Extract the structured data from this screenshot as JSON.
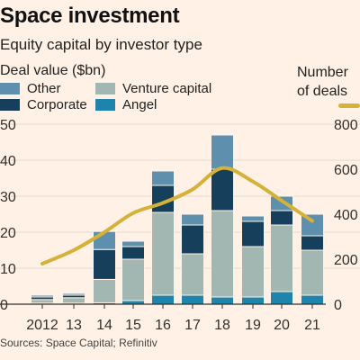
{
  "header": {
    "title": "Space investment",
    "subtitle": "Equity capital by investor type",
    "ylabel_left": "Deal value ($bn)",
    "ylabel_right_line1": "Number",
    "ylabel_right_line2": "of deals"
  },
  "legend": [
    {
      "label": "Other",
      "color": "#5e8fad"
    },
    {
      "label": "Venture capital",
      "color": "#a2b6b2"
    },
    {
      "label": "Corporate",
      "color": "#163f5b"
    },
    {
      "label": "Angel",
      "color": "#1f84ab"
    }
  ],
  "line_legend_color": "#d4b23a",
  "source": "Sources: Space Capital; Refinitiv",
  "chart_data": {
    "type": "bar",
    "stacked": true,
    "categories": [
      "2012",
      "13",
      "14",
      "15",
      "16",
      "17",
      "18",
      "19",
      "20",
      "21"
    ],
    "series": [
      {
        "name": "Angel",
        "color": "#1f84ab",
        "values": [
          0.3,
          0.3,
          0.4,
          1.0,
          2.5,
          2.5,
          2.0,
          2.0,
          3.5,
          2.5
        ]
      },
      {
        "name": "Venture capital",
        "color": "#a2b6b2",
        "values": [
          1.0,
          1.5,
          6.5,
          11.5,
          23.0,
          11.5,
          24.0,
          14.0,
          18.5,
          12.5
        ]
      },
      {
        "name": "Corporate",
        "color": "#163f5b",
        "values": [
          0.7,
          0.7,
          8.3,
          3.5,
          7.5,
          8.0,
          11.5,
          7.0,
          4.0,
          4.0
        ]
      },
      {
        "name": "Other",
        "color": "#5e8fad",
        "values": [
          0.5,
          0.5,
          5.0,
          1.5,
          4.0,
          3.0,
          9.5,
          1.5,
          4.0,
          6.0
        ]
      }
    ],
    "line_series": {
      "name": "Number of deals",
      "color": "#d4b23a",
      "axis": "right",
      "values": [
        180,
        240,
        320,
        405,
        450,
        510,
        605,
        545,
        460,
        370
      ]
    },
    "y_left": {
      "min": 0,
      "max": 50,
      "ticks": [
        "0",
        "10",
        "20",
        "30",
        "40",
        "50"
      ]
    },
    "y_right": {
      "min": 0,
      "max": 800,
      "ticks": [
        "0",
        "200",
        "400",
        "600",
        "800"
      ]
    },
    "grid": true
  }
}
